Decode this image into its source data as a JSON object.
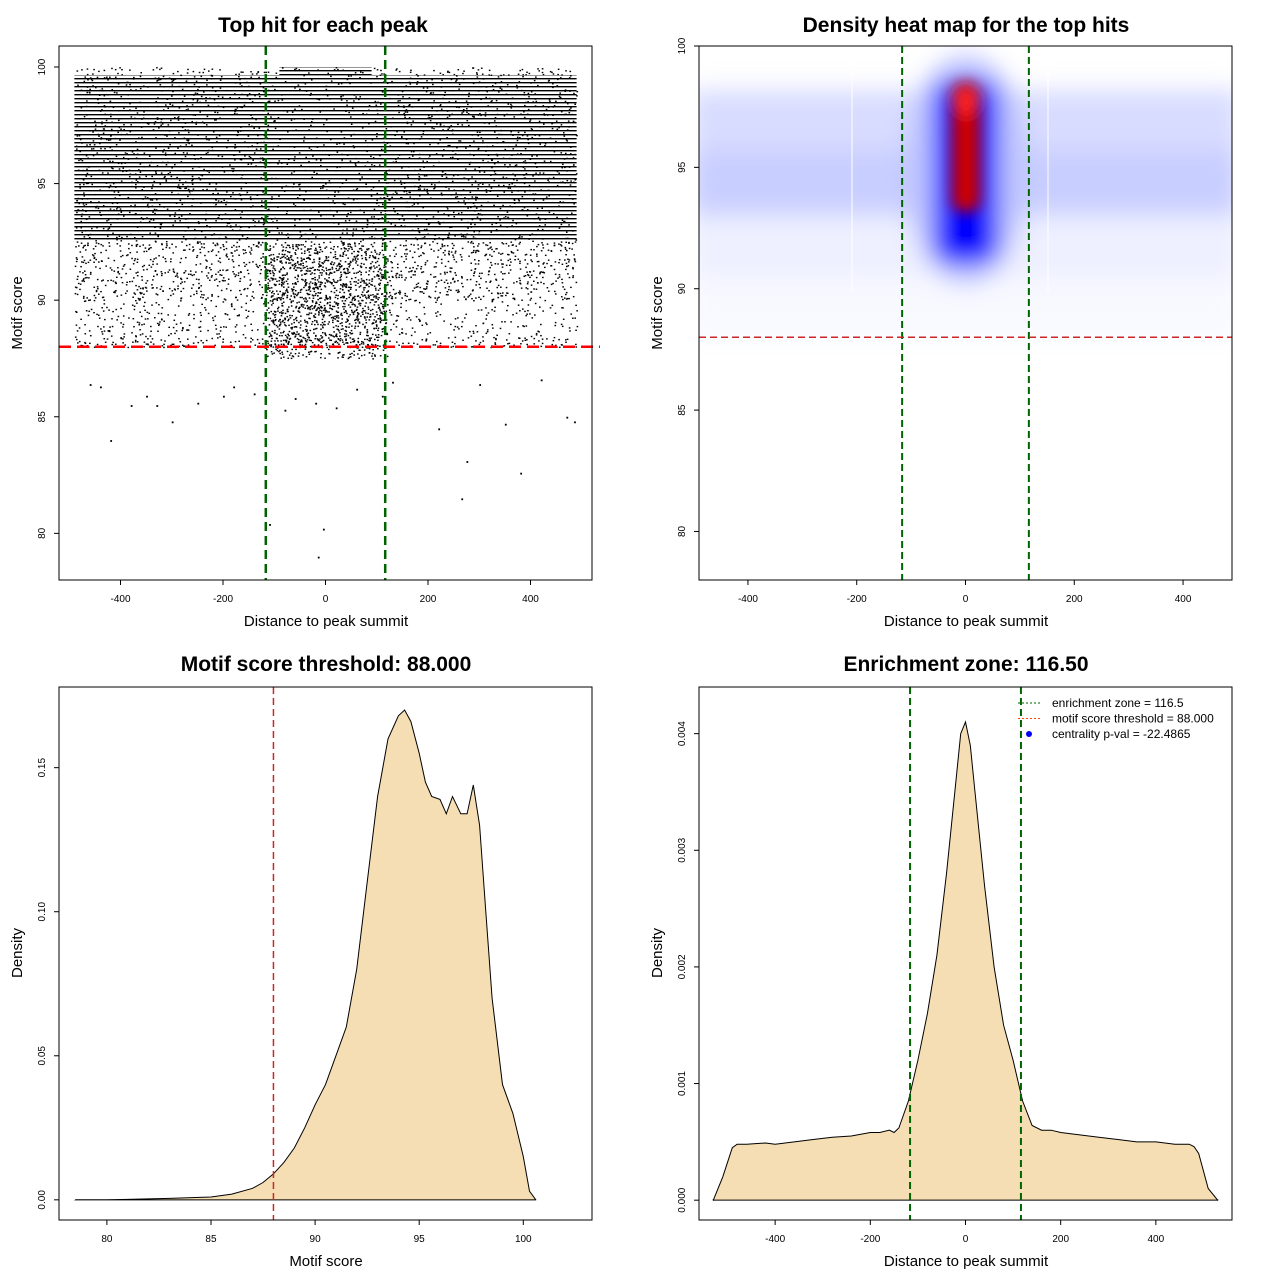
{
  "chart_data": [
    {
      "type": "scatter",
      "title": "Top hit for each peak",
      "xlabel": "Distance to peak summit",
      "ylabel": "Motif score",
      "xlim": [
        -520,
        520
      ],
      "ylim": [
        78,
        100.9
      ],
      "x_ticks": [
        -400,
        -200,
        0,
        200,
        400
      ],
      "y_ticks": [
        80,
        85,
        90,
        95,
        100
      ],
      "x_tick_labels": [
        "-400",
        "-200",
        "0",
        "200",
        "400"
      ],
      "y_tick_labels": [
        "80",
        "85",
        "90",
        "95",
        "100"
      ],
      "vlines": [
        -116.5,
        116.5
      ],
      "hline": 88.0,
      "point_cloud": {
        "x_range": [
          -490,
          490
        ],
        "dense_y_range": [
          88,
          100
        ],
        "center_bias_x": 0
      },
      "sparse_points": [
        {
          "x": -420,
          "y": 84.0
        },
        {
          "x": -380,
          "y": 85.5
        },
        {
          "x": -330,
          "y": 85.5
        },
        {
          "x": -300,
          "y": 84.8
        },
        {
          "x": -250,
          "y": 85.6
        },
        {
          "x": -200,
          "y": 85.9
        },
        {
          "x": -180,
          "y": 86.3
        },
        {
          "x": -140,
          "y": 86.0
        },
        {
          "x": -110,
          "y": 80.4
        },
        {
          "x": -80,
          "y": 85.3
        },
        {
          "x": -60,
          "y": 85.8
        },
        {
          "x": -20,
          "y": 85.6
        },
        {
          "x": -15,
          "y": 79.0
        },
        {
          "x": -5,
          "y": 80.2
        },
        {
          "x": 20,
          "y": 85.4
        },
        {
          "x": 60,
          "y": 86.2
        },
        {
          "x": 110,
          "y": 85.9
        },
        {
          "x": 130,
          "y": 86.5
        },
        {
          "x": 220,
          "y": 84.5
        },
        {
          "x": 265,
          "y": 81.5
        },
        {
          "x": 275,
          "y": 83.1
        },
        {
          "x": 350,
          "y": 84.7
        },
        {
          "x": 380,
          "y": 82.6
        },
        {
          "x": 470,
          "y": 85.0
        },
        {
          "x": 485,
          "y": 84.8
        },
        {
          "x": -460,
          "y": 86.4
        },
        {
          "x": -440,
          "y": 86.3
        },
        {
          "x": -350,
          "y": 85.9
        },
        {
          "x": 300,
          "y": 86.4
        },
        {
          "x": 420,
          "y": 86.6
        }
      ]
    },
    {
      "type": "heatmap",
      "title": "Density heat map for the top hits",
      "xlabel": "Distance to peak summit",
      "ylabel": "Motif score",
      "xlim": [
        -490,
        490
      ],
      "ylim": [
        78,
        100
      ],
      "x_ticks": [
        -400,
        -200,
        0,
        200,
        400
      ],
      "y_ticks": [
        80,
        85,
        90,
        95,
        100
      ],
      "x_tick_labels": [
        "-400",
        "-200",
        "0",
        "200",
        "400"
      ],
      "y_tick_labels": [
        "80",
        "85",
        "90",
        "95",
        "100"
      ],
      "vlines": [
        -116.5,
        116.5
      ],
      "hline": 88.0,
      "colors": [
        "#ffffff",
        "#0000ff",
        "#ff0000"
      ]
    },
    {
      "type": "area",
      "title": "Motif score threshold: 88.000",
      "xlabel": "Motif score",
      "ylabel": "Density",
      "xlim": [
        77.7,
        103.3
      ],
      "ylim": [
        -0.007,
        0.178
      ],
      "x_ticks": [
        80,
        85,
        90,
        95,
        100
      ],
      "y_ticks": [
        0.0,
        0.05,
        0.1,
        0.15
      ],
      "x_tick_labels": [
        "80",
        "85",
        "90",
        "95",
        "100"
      ],
      "y_tick_labels": [
        "0.00",
        "0.05",
        "0.10",
        "0.15"
      ],
      "vline": 88.0,
      "fill_color": "#f5deb3",
      "x": [
        78.5,
        80,
        83,
        85,
        86,
        87,
        87.5,
        88,
        88.5,
        89,
        89.5,
        90,
        90.5,
        91,
        91.5,
        92,
        92.5,
        93,
        93.5,
        94,
        94.3,
        94.6,
        95,
        95.3,
        95.6,
        96,
        96.3,
        96.6,
        97,
        97.3,
        97.6,
        97.9,
        98.2,
        98.5,
        99,
        99.5,
        100,
        100.3,
        100.6
      ],
      "y": [
        0.0,
        0.0,
        0.0005,
        0.001,
        0.002,
        0.004,
        0.006,
        0.009,
        0.013,
        0.018,
        0.025,
        0.033,
        0.04,
        0.05,
        0.06,
        0.08,
        0.11,
        0.14,
        0.16,
        0.168,
        0.17,
        0.166,
        0.155,
        0.145,
        0.14,
        0.139,
        0.134,
        0.14,
        0.134,
        0.134,
        0.144,
        0.13,
        0.1,
        0.07,
        0.04,
        0.03,
        0.015,
        0.003,
        0.0
      ]
    },
    {
      "type": "area",
      "title": "Enrichment zone: 116.50",
      "xlabel": "Distance to peak summit",
      "ylabel": "Density",
      "xlim": [
        -560,
        560
      ],
      "ylim": [
        -0.00017,
        0.0044
      ],
      "x_ticks": [
        -400,
        -200,
        0,
        200,
        400
      ],
      "y_ticks": [
        0.0,
        0.001,
        0.002,
        0.003,
        0.004
      ],
      "x_tick_labels": [
        "-400",
        "-200",
        "0",
        "200",
        "400"
      ],
      "y_tick_labels": [
        "0.000",
        "0.001",
        "0.002",
        "0.003",
        "0.004"
      ],
      "vlines": [
        -116.5,
        116.5
      ],
      "fill_color": "#f5deb3",
      "x": [
        -530,
        -510,
        -490,
        -480,
        -460,
        -420,
        -400,
        -360,
        -320,
        -280,
        -240,
        -200,
        -180,
        -160,
        -150,
        -140,
        -120,
        -100,
        -80,
        -60,
        -40,
        -20,
        -10,
        0,
        10,
        20,
        40,
        60,
        80,
        100,
        120,
        140,
        160,
        180,
        200,
        240,
        280,
        320,
        360,
        400,
        440,
        470,
        480,
        490,
        510,
        530
      ],
      "y": [
        0.0,
        0.0002,
        0.00045,
        0.00048,
        0.00048,
        0.00049,
        0.00048,
        0.0005,
        0.00052,
        0.00054,
        0.00055,
        0.00058,
        0.00058,
        0.0006,
        0.00058,
        0.00062,
        0.00085,
        0.0012,
        0.0016,
        0.0021,
        0.0028,
        0.0036,
        0.004,
        0.0041,
        0.0039,
        0.0035,
        0.0027,
        0.002,
        0.0015,
        0.0012,
        0.00085,
        0.00064,
        0.0006,
        0.0006,
        0.00058,
        0.00056,
        0.00054,
        0.00052,
        0.0005,
        0.0005,
        0.00048,
        0.00048,
        0.00046,
        0.0004,
        0.0001,
        0.0
      ],
      "legend": {
        "placement": "top-right",
        "entries": [
          {
            "label": "enrichment zone = 116.5",
            "color": "#006400",
            "style": "dotted"
          },
          {
            "label": "motif score threshold = 88.000",
            "color": "#ff4500",
            "style": "dotted"
          },
          {
            "label": "centrality p-val = -22.4865",
            "color": "#0000ff",
            "style": "point"
          }
        ]
      }
    }
  ]
}
